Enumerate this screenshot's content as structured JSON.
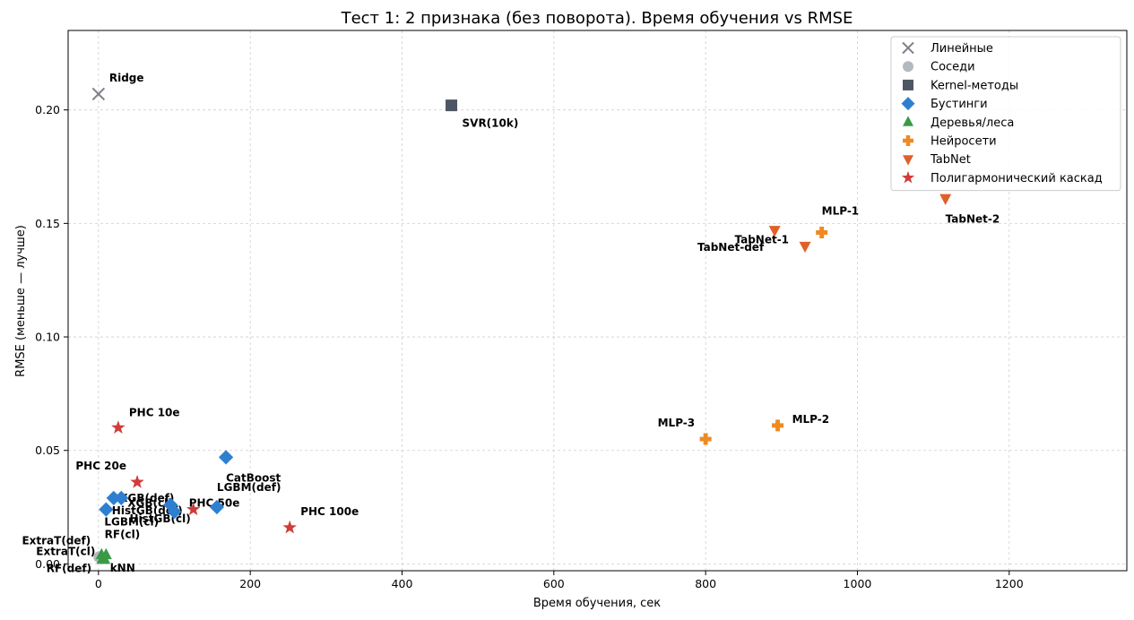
{
  "chart_data": {
    "type": "scatter",
    "title": "Тест 1: 2 признака (без поворота). Время обучения vs RMSE",
    "xlabel": "Время обучения, сек",
    "ylabel": "RMSE (меньше — лучше)",
    "xlim": [
      -40,
      1355
    ],
    "ylim": [
      -0.003,
      0.235
    ],
    "xticks": [
      0,
      200,
      400,
      600,
      800,
      1000,
      1200
    ],
    "xtick_labels": [
      "0",
      "200",
      "400",
      "600",
      "800",
      "1000",
      "1200"
    ],
    "yticks": [
      0.0,
      0.05,
      0.1,
      0.15,
      0.2
    ],
    "ytick_labels": [
      "0.00",
      "0.05",
      "0.10",
      "0.15",
      "0.20"
    ],
    "grid": true,
    "legend_position": "top-right",
    "series": [
      {
        "name": "Линейные",
        "marker": "x",
        "color": "#7f7f8a",
        "points": [
          {
            "label": "Ridge",
            "x": 0,
            "y": 0.207
          }
        ]
      },
      {
        "name": "Соседи",
        "marker": "circle",
        "color": "#b4b9c0",
        "points": [
          {
            "label": "kNN",
            "x": 1,
            "y": 0.003
          }
        ]
      },
      {
        "name": "Kernel-методы",
        "marker": "square",
        "color": "#4f5663",
        "points": [
          {
            "label": "SVR(10k)",
            "x": 465,
            "y": 0.202
          }
        ]
      },
      {
        "name": "Бустинги",
        "marker": "diamond",
        "color": "#2f7fd1",
        "points": [
          {
            "label": "CatBoost",
            "x": 168,
            "y": 0.047
          },
          {
            "label": "LGBM(def)",
            "x": 156,
            "y": 0.025
          },
          {
            "label": "XGB(def)",
            "x": 30,
            "y": 0.029
          },
          {
            "label": "XGB(cl)",
            "x": 95,
            "y": 0.026
          },
          {
            "label": "HistGB(def)",
            "x": 20,
            "y": 0.029
          },
          {
            "label": "HistGB(cl)",
            "x": 100,
            "y": 0.023
          },
          {
            "label": "LGBM(cl)",
            "x": 10,
            "y": 0.024
          }
        ]
      },
      {
        "name": "Деревья/леса",
        "marker": "triangle-up",
        "color": "#3a9a48",
        "points": [
          {
            "label": "ExtraT(def)",
            "x": 4,
            "y": 0.004
          },
          {
            "label": "ExtraT(cl)",
            "x": 10,
            "y": 0.004
          },
          {
            "label": "RF(def)",
            "x": 5,
            "y": 0.002
          },
          {
            "label": "RF(cl)",
            "x": 8,
            "y": 0.002
          }
        ]
      },
      {
        "name": "Нейросети",
        "marker": "plus",
        "color": "#ef8a22",
        "points": [
          {
            "label": "MLP-1",
            "x": 953,
            "y": 0.146
          },
          {
            "label": "MLP-2",
            "x": 895,
            "y": 0.061
          },
          {
            "label": "MLP-3",
            "x": 800,
            "y": 0.055
          }
        ]
      },
      {
        "name": "TabNet",
        "marker": "triangle-down",
        "color": "#e0602a",
        "points": [
          {
            "label": "TabNet-1",
            "x": 931,
            "y": 0.14
          },
          {
            "label": "TabNet-def",
            "x": 891,
            "y": 0.147
          },
          {
            "label": "TabNet-2",
            "x": 1116,
            "y": 0.161
          }
        ]
      },
      {
        "name": "Полигармонический каскад",
        "marker": "star",
        "color": "#d03b3b",
        "points": [
          {
            "label": "PHC 10e",
            "x": 26,
            "y": 0.06
          },
          {
            "label": "PHC 20e",
            "x": 51,
            "y": 0.036
          },
          {
            "label": "PHC 100e",
            "x": 252,
            "y": 0.016
          },
          {
            "label": "PHC 50e",
            "x": 125,
            "y": 0.024
          }
        ]
      }
    ]
  }
}
